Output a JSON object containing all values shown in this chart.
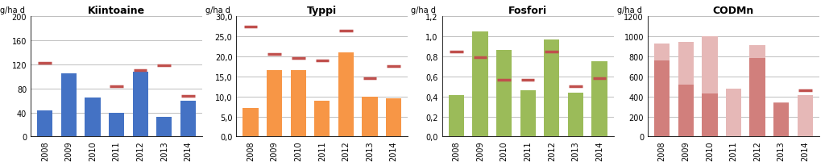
{
  "charts": [
    {
      "title": "Kiintoaine",
      "ylabel": "g/ha d",
      "ylim": [
        0,
        200
      ],
      "yticks": [
        0,
        40,
        80,
        120,
        160,
        200
      ],
      "ytick_labels": [
        "0",
        "40",
        "80",
        "120",
        "160",
        "200"
      ],
      "bar_color": "#4472C4",
      "marker_color": "#C0504D",
      "years": [
        "2008",
        "2009",
        "2010",
        "2011",
        "2012",
        "2013",
        "2014"
      ],
      "values": [
        43,
        105,
        65,
        40,
        108,
        33,
        60
      ],
      "markers": [
        122,
        null,
        null,
        83,
        110,
        118,
        68
      ]
    },
    {
      "title": "Typpi",
      "ylabel": "g/ha d",
      "ylim": [
        0,
        30
      ],
      "yticks": [
        0,
        5,
        10,
        15,
        20,
        25,
        30
      ],
      "ytick_labels": [
        "0,0",
        "5,0",
        "10,0",
        "15,0",
        "20,0",
        "25,0",
        "30,0"
      ],
      "bar_color": "#F79646",
      "marker_color": "#C0504D",
      "years": [
        "2008",
        "2009",
        "2010",
        "2011",
        "2012",
        "2013",
        "2014"
      ],
      "values": [
        7.2,
        16.5,
        16.5,
        9.0,
        21.0,
        10.0,
        9.5
      ],
      "markers": [
        27.5,
        20.5,
        19.5,
        19.0,
        26.5,
        14.5,
        17.5
      ]
    },
    {
      "title": "Fosfori",
      "ylabel": "g/ha d",
      "ylim": [
        0,
        1.2
      ],
      "yticks": [
        0,
        0.2,
        0.4,
        0.6,
        0.8,
        1.0,
        1.2
      ],
      "ytick_labels": [
        "0,0",
        "0,2",
        "0,4",
        "0,6",
        "0,8",
        "1,0",
        "1,2"
      ],
      "bar_color": "#9BBB59",
      "marker_color": "#C0504D",
      "years": [
        "2008",
        "2009",
        "2010",
        "2011",
        "2012",
        "2013",
        "2014"
      ],
      "values": [
        0.41,
        1.05,
        0.86,
        0.46,
        0.97,
        0.44,
        0.75
      ],
      "markers": [
        0.85,
        0.79,
        0.57,
        0.57,
        0.85,
        0.5,
        0.58
      ]
    },
    {
      "title": "CODMn",
      "ylabel": "g/ha d",
      "ylim": [
        0,
        1200
      ],
      "yticks": [
        0,
        200,
        400,
        600,
        800,
        1000,
        1200
      ],
      "ytick_labels": [
        "0",
        "200",
        "400",
        "600",
        "800",
        "1000",
        "1200"
      ],
      "bar_color": "#E6B8B7",
      "bar_inner_color": "#C0504D",
      "marker_color": "#C0504D",
      "years": [
        "2008",
        "2009",
        "2010",
        "2011",
        "2012",
        "2013",
        "2014"
      ],
      "values": [
        930,
        940,
        1000,
        480,
        910,
        330,
        410
      ],
      "inner_values": [
        760,
        520,
        430,
        null,
        780,
        340,
        null
      ],
      "markers": [
        null,
        null,
        null,
        null,
        null,
        null,
        460
      ]
    }
  ],
  "bg_color": "#FFFFFF",
  "plot_bg": "#FFFFFF",
  "grid_color": "#BFBFBF",
  "fig_width": 10.24,
  "fig_height": 2.07,
  "title_fontsize": 9,
  "tick_fontsize": 7,
  "ylabel_fontsize": 7
}
